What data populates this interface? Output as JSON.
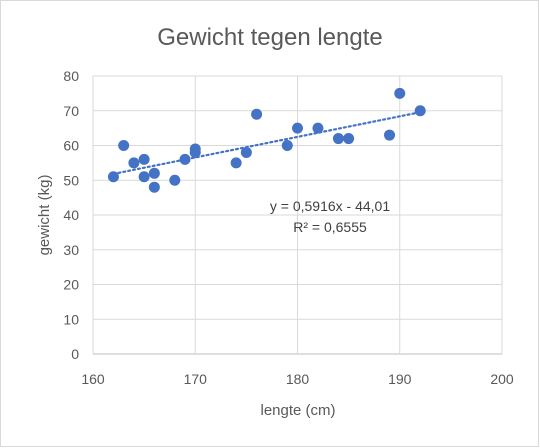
{
  "chart_data": {
    "type": "scatter",
    "title": "Gewicht tegen lengte",
    "xlabel": "lengte (cm)",
    "ylabel": "gewicht (kg)",
    "xlim": [
      160,
      200
    ],
    "ylim": [
      0,
      80
    ],
    "x_ticks": [
      160,
      170,
      180,
      190,
      200
    ],
    "y_ticks": [
      0,
      10,
      20,
      30,
      40,
      50,
      60,
      70,
      80
    ],
    "x_tick_labels": [
      "160",
      "170",
      "180",
      "190",
      "200"
    ],
    "y_tick_labels": [
      "0",
      "10",
      "20",
      "30",
      "40",
      "50",
      "60",
      "70",
      "80"
    ],
    "grid": "horizontal",
    "legend": "none",
    "point_color": "#4472c4",
    "trendline_color": "#4472c4",
    "points": [
      {
        "x": 162,
        "y": 51
      },
      {
        "x": 163,
        "y": 60
      },
      {
        "x": 164,
        "y": 55
      },
      {
        "x": 165,
        "y": 56
      },
      {
        "x": 165,
        "y": 51
      },
      {
        "x": 166,
        "y": 52
      },
      {
        "x": 166,
        "y": 48
      },
      {
        "x": 168,
        "y": 50
      },
      {
        "x": 169,
        "y": 56
      },
      {
        "x": 170,
        "y": 59
      },
      {
        "x": 170,
        "y": 58
      },
      {
        "x": 174,
        "y": 55
      },
      {
        "x": 175,
        "y": 58
      },
      {
        "x": 176,
        "y": 69
      },
      {
        "x": 179,
        "y": 60
      },
      {
        "x": 180,
        "y": 65
      },
      {
        "x": 182,
        "y": 65
      },
      {
        "x": 184,
        "y": 62
      },
      {
        "x": 185,
        "y": 62
      },
      {
        "x": 189,
        "y": 63
      },
      {
        "x": 190,
        "y": 75
      },
      {
        "x": 192,
        "y": 70
      }
    ],
    "trendline": {
      "slope": 0.5916,
      "intercept": -44.01,
      "x_range": [
        162,
        192
      ],
      "equation": "y = 0,5916x - 44,01",
      "r_squared": "R² = 0,6555"
    }
  }
}
